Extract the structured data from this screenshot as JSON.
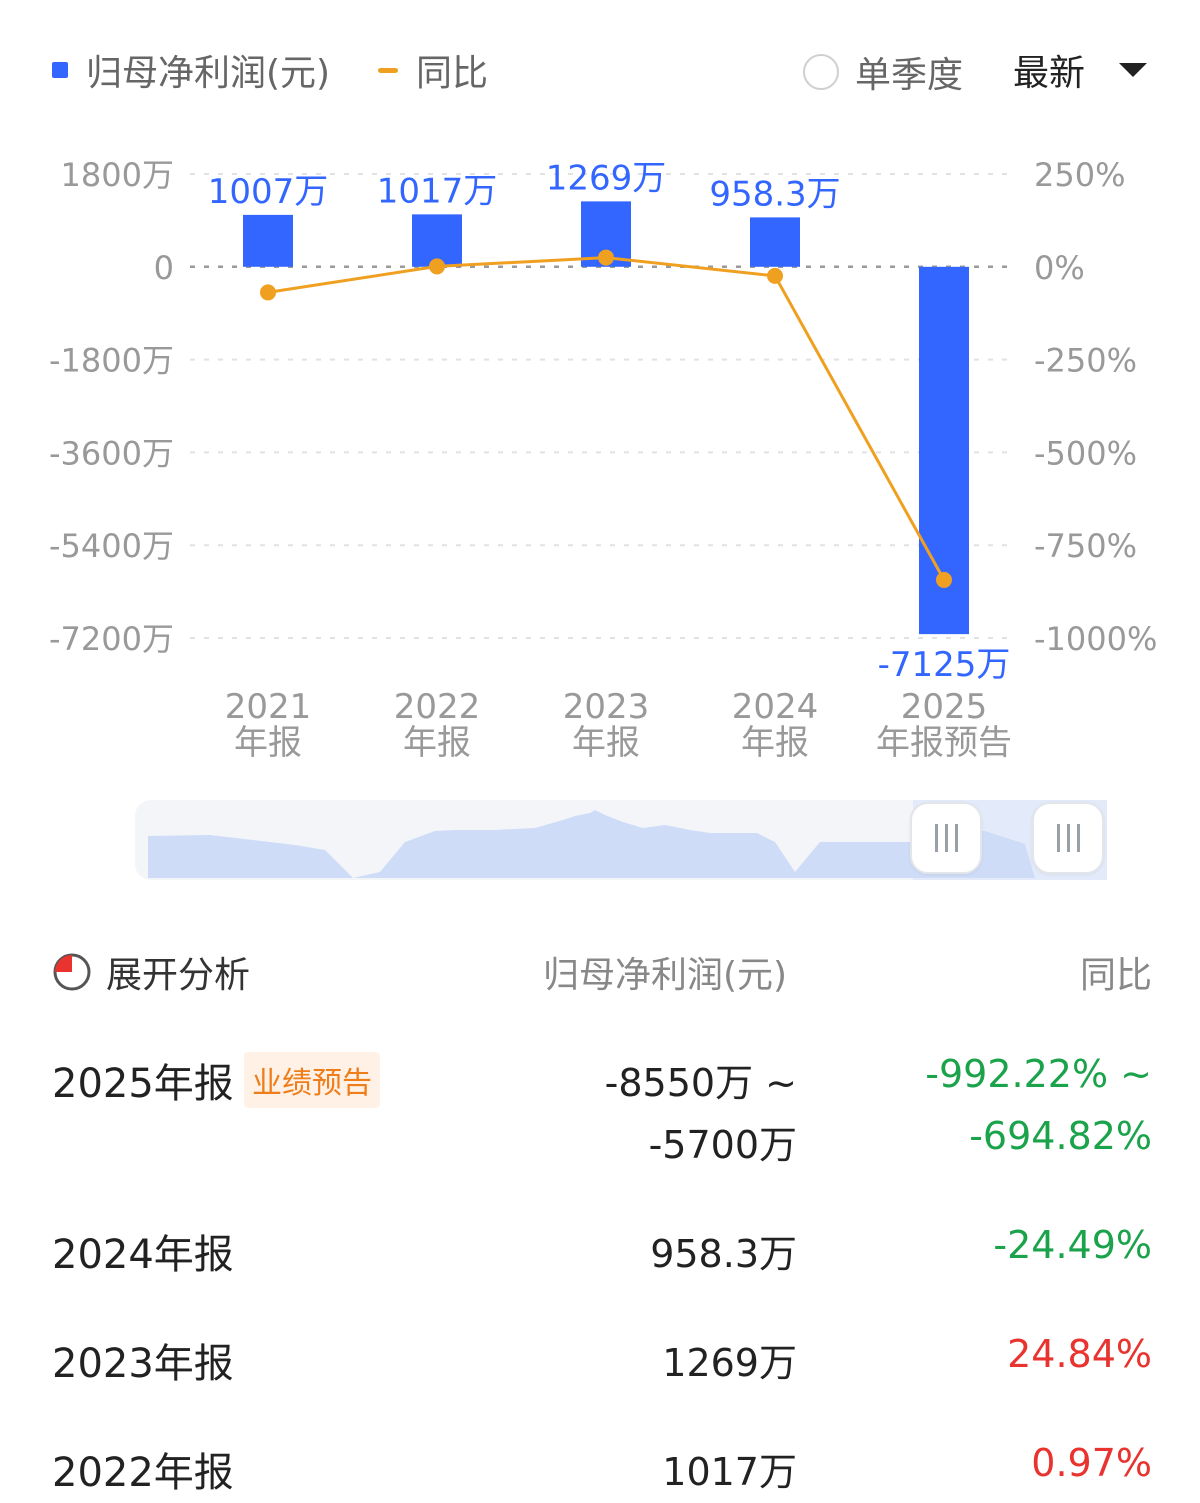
{
  "legend": {
    "bar_label": "归母净利润(元)",
    "line_label": "同比"
  },
  "controls": {
    "quarter_toggle_label": "单季度",
    "sort_select_value": "最新"
  },
  "chart_data": {
    "type": "bar",
    "categories": [
      "2021\n年报",
      "2022\n年报",
      "2023\n年报",
      "2024\n年报",
      "2025\n年报预告"
    ],
    "series": [
      {
        "name": "归母净利润(元)",
        "type": "bar",
        "values": [
          10070000,
          10170000,
          12690000,
          9583000,
          -71250000
        ],
        "labels": [
          "1007万",
          "1017万",
          "1269万",
          "958.3万",
          "-7125万"
        ],
        "color": "#3366ff",
        "axis": "left"
      },
      {
        "name": "同比",
        "type": "line",
        "values": [
          -69,
          1,
          24.84,
          -24.49,
          -843.52
        ],
        "color": "#f0a020",
        "axis": "right"
      }
    ],
    "left_axis": {
      "ylim": [
        -72000000,
        18000000
      ],
      "ticks": [
        18000000,
        0,
        -18000000,
        -36000000,
        -54000000,
        -72000000
      ],
      "tick_labels": [
        "1800万",
        "0",
        "-1800万",
        "-3600万",
        "-5400万",
        "-7200万"
      ]
    },
    "right_axis": {
      "ylim": [
        -1000,
        250
      ],
      "ticks": [
        250,
        0,
        -250,
        -500,
        -750,
        -1000
      ],
      "tick_labels": [
        "250%",
        "0%",
        "-250%",
        "-500%",
        "-750%",
        "-1000%"
      ]
    },
    "grid": true
  },
  "table": {
    "analysis_label": "展开分析",
    "col_value": "归母净利润(元)",
    "col_yoy": "同比",
    "rows": [
      {
        "period": "2025年报",
        "badge": "业绩预告",
        "value_line1": "-8550万 ~",
        "value_line2": "-5700万",
        "yoy_line1": "-992.22% ~",
        "yoy_line2": "-694.82%",
        "yoy_color": "#1aa34a"
      },
      {
        "period": "2024年报",
        "value": "958.3万",
        "yoy": "-24.49%",
        "yoy_color": "#1aa34a"
      },
      {
        "period": "2023年报",
        "value": "1269万",
        "yoy": "24.84%",
        "yoy_color": "#e8332f"
      },
      {
        "period": "2022年报",
        "value": "1017万",
        "yoy": "0.97%",
        "yoy_color": "#e8332f"
      }
    ]
  },
  "colors": {
    "bar": "#3366ff",
    "line": "#f0a020",
    "label": "#3366ff",
    "positive": "#e8332f",
    "negative": "#1aa34a",
    "badge_bg": "#fff1e6",
    "badge_fg": "#ef7d1a"
  }
}
